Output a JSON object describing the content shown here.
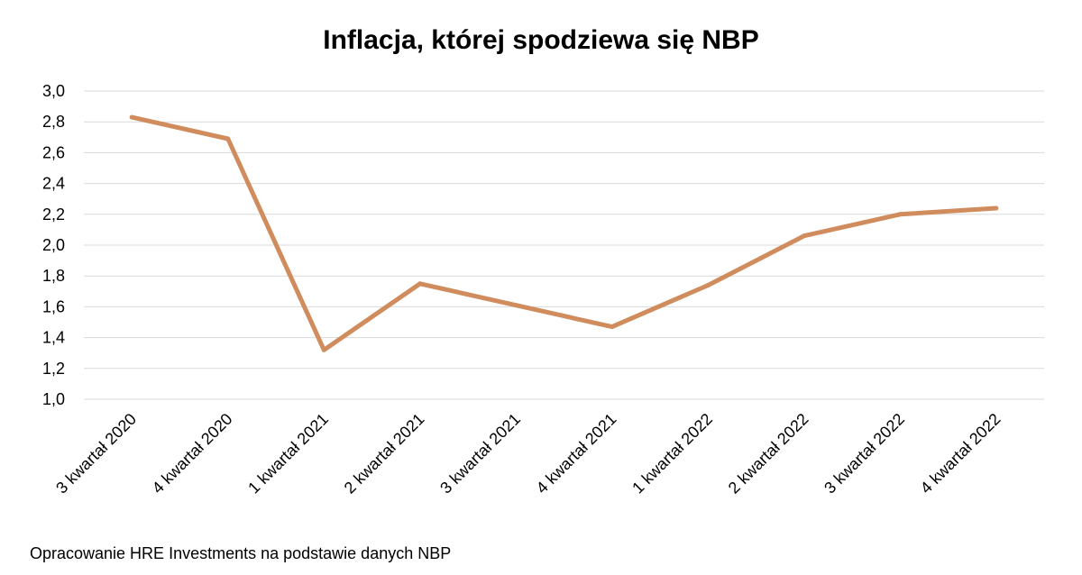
{
  "chart_data": {
    "type": "line",
    "title": "Inflacja, której spodziewa się NBP",
    "xlabel": "",
    "ylabel": "",
    "categories": [
      "3 kwartał 2020",
      "4 kwartał 2020",
      "1 kwartał 2021",
      "2 kwartał 2021",
      "3 kwartał 2021",
      "4 kwartał 2021",
      "1 kwartał 2022",
      "2 kwartał 2022",
      "3 kwartał 2022",
      "4 kwartał 2022"
    ],
    "series": [
      {
        "values": [
          2.83,
          2.69,
          1.32,
          1.75,
          1.61,
          1.47,
          1.74,
          2.06,
          2.2,
          2.24
        ],
        "color": "#d08c5c"
      }
    ],
    "ylim": [
      1.0,
      3.0
    ],
    "yticks": [
      "1,0",
      "1,2",
      "1,4",
      "1,6",
      "1,8",
      "2,0",
      "2,2",
      "2,4",
      "2,6",
      "2,8",
      "3,0"
    ],
    "grid": true,
    "legend": "none"
  },
  "source_note": "Opracowanie HRE Investments na podstawie danych NBP"
}
